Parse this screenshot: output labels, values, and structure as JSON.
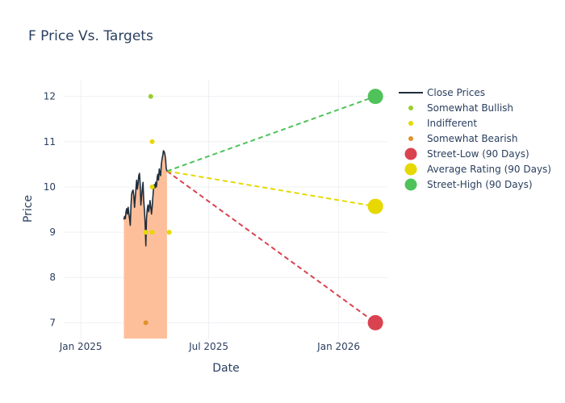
{
  "chart_data": {
    "type": "line",
    "title": "F Price Vs. Targets",
    "xlabel": "Date",
    "ylabel": "Price",
    "x_range": [
      "2024-12-09",
      "2026-03-11"
    ],
    "ylim": [
      6.65,
      12.35
    ],
    "x_ticks": [
      {
        "date": "2025-01-01",
        "label": "Jan 2025"
      },
      {
        "date": "2025-07-01",
        "label": "Jul 2025"
      },
      {
        "date": "2026-01-01",
        "label": "Jan 2026"
      }
    ],
    "y_ticks": [
      7,
      8,
      9,
      10,
      11,
      12
    ],
    "grid": true,
    "legend_position": "right",
    "close_prices": {
      "name": "Close Prices",
      "color": "#1f2d3d",
      "fill_color": "#fdbf9a",
      "points": [
        [
          "2025-03-03",
          9.28
        ],
        [
          "2025-03-04",
          9.35
        ],
        [
          "2025-03-05",
          9.3
        ],
        [
          "2025-03-06",
          9.45
        ],
        [
          "2025-03-07",
          9.52
        ],
        [
          "2025-03-08",
          9.4
        ],
        [
          "2025-03-09",
          9.55
        ],
        [
          "2025-03-10",
          9.42
        ],
        [
          "2025-03-11",
          9.3
        ],
        [
          "2025-03-12",
          9.15
        ],
        [
          "2025-03-13",
          9.6
        ],
        [
          "2025-03-14",
          9.85
        ],
        [
          "2025-03-15",
          9.9
        ],
        [
          "2025-03-16",
          9.93
        ],
        [
          "2025-03-17",
          9.8
        ],
        [
          "2025-03-18",
          9.55
        ],
        [
          "2025-03-19",
          9.75
        ],
        [
          "2025-03-20",
          9.95
        ],
        [
          "2025-03-21",
          10.15
        ],
        [
          "2025-03-22",
          9.95
        ],
        [
          "2025-03-23",
          10.05
        ],
        [
          "2025-03-24",
          10.25
        ],
        [
          "2025-03-25",
          10.3
        ],
        [
          "2025-03-26",
          10.05
        ],
        [
          "2025-03-27",
          9.6
        ],
        [
          "2025-03-28",
          9.78
        ],
        [
          "2025-03-29",
          9.95
        ],
        [
          "2025-03-30",
          10.1
        ],
        [
          "2025-03-31",
          9.72
        ],
        [
          "2025-04-01",
          9.5
        ],
        [
          "2025-04-02",
          9.2
        ],
        [
          "2025-04-03",
          8.7
        ],
        [
          "2025-04-04",
          9.3
        ],
        [
          "2025-04-05",
          9.5
        ],
        [
          "2025-04-06",
          9.6
        ],
        [
          "2025-04-07",
          9.45
        ],
        [
          "2025-04-08",
          9.55
        ],
        [
          "2025-04-09",
          9.7
        ],
        [
          "2025-04-10",
          9.55
        ],
        [
          "2025-04-11",
          9.4
        ],
        [
          "2025-04-12",
          9.55
        ],
        [
          "2025-04-13",
          9.78
        ],
        [
          "2025-04-14",
          10.0
        ],
        [
          "2025-04-15",
          10.05
        ],
        [
          "2025-04-16",
          9.98
        ],
        [
          "2025-04-17",
          10.1
        ],
        [
          "2025-04-18",
          10.0
        ],
        [
          "2025-04-19",
          10.2
        ],
        [
          "2025-04-20",
          10.28
        ],
        [
          "2025-04-21",
          10.15
        ],
        [
          "2025-04-22",
          10.4
        ],
        [
          "2025-04-23",
          10.3
        ],
        [
          "2025-04-24",
          10.25
        ],
        [
          "2025-04-25",
          10.5
        ],
        [
          "2025-04-26",
          10.62
        ],
        [
          "2025-04-27",
          10.7
        ],
        [
          "2025-04-28",
          10.8
        ],
        [
          "2025-04-29",
          10.78
        ],
        [
          "2025-04-30",
          10.72
        ],
        [
          "2025-05-01",
          10.6
        ],
        [
          "2025-05-02",
          10.4
        ],
        [
          "2025-05-03",
          10.35
        ]
      ]
    },
    "analyst_ratings": [
      {
        "name": "Somewhat Bullish",
        "color": "#9acd32",
        "points": [
          [
            "2025-04-10",
            12
          ]
        ]
      },
      {
        "name": "Indifferent",
        "color": "#e6d800",
        "points": [
          [
            "2025-04-03",
            9
          ],
          [
            "2025-04-12",
            11
          ],
          [
            "2025-04-12",
            10
          ],
          [
            "2025-04-12",
            9
          ],
          [
            "2025-05-06",
            9
          ]
        ]
      },
      {
        "name": "Somewhat Bearish",
        "color": "#e0902c",
        "points": [
          [
            "2025-04-03",
            7
          ]
        ]
      }
    ],
    "targets": [
      {
        "name": "Street-Low (90 Days)",
        "color": "#d9434f",
        "from": [
          "2025-05-03",
          10.35
        ],
        "to": [
          "2026-02-22",
          7.0
        ]
      },
      {
        "name": "Average Rating (90 Days)",
        "color": "#e6d800",
        "from": [
          "2025-05-03",
          10.35
        ],
        "to": [
          "2026-02-22",
          9.57
        ]
      },
      {
        "name": "Street-High (90 Days)",
        "color": "#4fc35a",
        "from": [
          "2025-05-03",
          10.35
        ],
        "to": [
          "2026-02-22",
          12.0
        ]
      }
    ],
    "legend": [
      {
        "label": "Close Prices",
        "kind": "line",
        "color": "#1f2d3d"
      },
      {
        "label": "Somewhat Bullish",
        "kind": "dot",
        "color": "#9acd32"
      },
      {
        "label": "Indifferent",
        "kind": "dot",
        "color": "#e6d800"
      },
      {
        "label": "Somewhat Bearish",
        "kind": "dot",
        "color": "#e0902c"
      },
      {
        "label": "Street-Low (90 Days)",
        "kind": "big",
        "color": "#d9434f"
      },
      {
        "label": "Average Rating (90 Days)",
        "kind": "big",
        "color": "#e6d800"
      },
      {
        "label": "Street-High (90 Days)",
        "kind": "big",
        "color": "#4fc35a"
      }
    ]
  }
}
